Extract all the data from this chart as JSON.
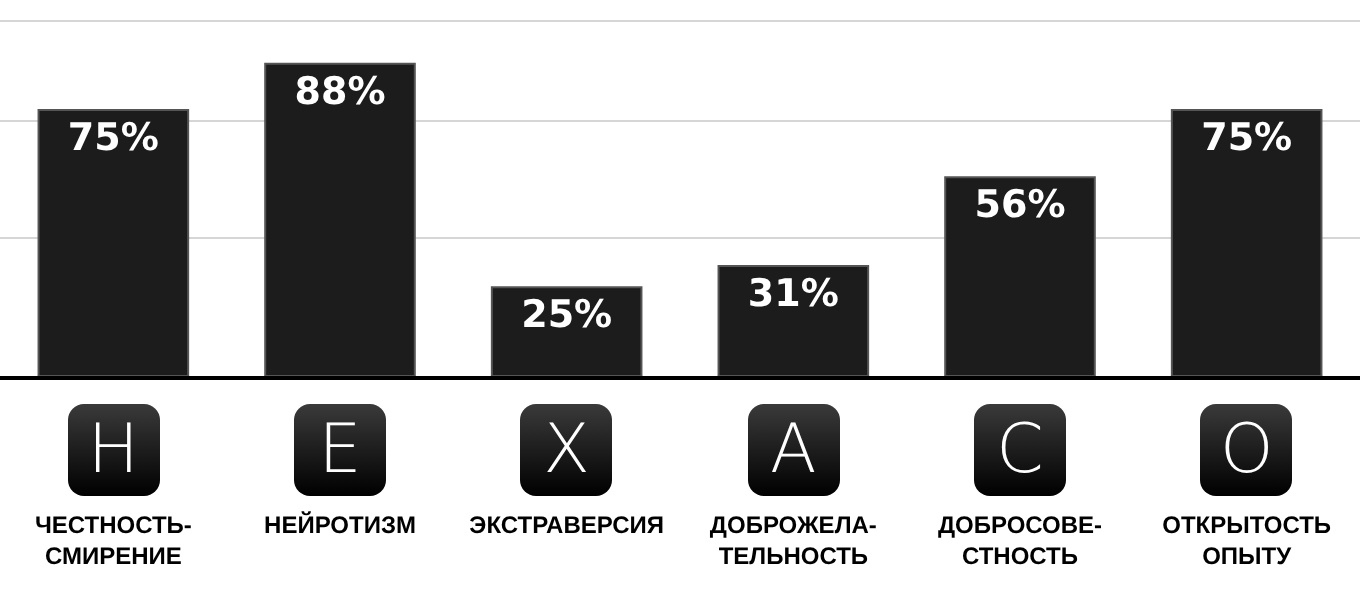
{
  "chart_data": {
    "type": "bar",
    "categories": [
      "ЧЕСТНОСТЬ-\nСМИРЕНИЕ",
      "НЕЙРОТИЗМ",
      "ЭКСТРАВЕРСИЯ",
      "ДОБРОЖЕЛА-\nТЕЛЬНОСТЬ",
      "ДОБРОСОВЕ-\nСТНОСТЬ",
      "ОТКРЫТОСТЬ\nОПЫТУ"
    ],
    "values": [
      75,
      88,
      25,
      31,
      56,
      75
    ],
    "value_labels": [
      "75%",
      "88%",
      "25%",
      "31%",
      "56%",
      "75%"
    ],
    "color": "#1c1c1c",
    "annotations": [
      "H",
      "E",
      "X",
      "A",
      "C",
      "O"
    ],
    "ylim": [
      0,
      106
    ],
    "yticks": [
      {
        "value": 39,
        "label": null
      },
      {
        "value": 72,
        "label": null
      },
      {
        "value": 100,
        "label": null
      }
    ],
    "grid": "y"
  }
}
